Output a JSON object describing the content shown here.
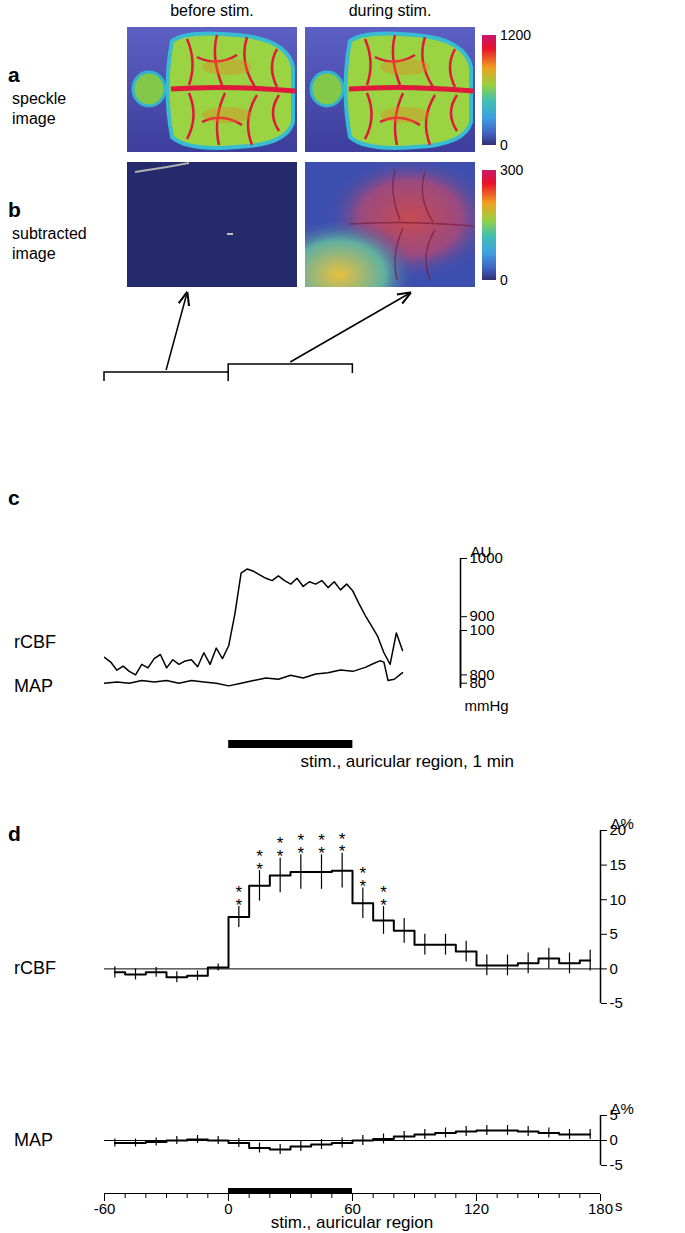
{
  "image_panels": [
    {
      "panel": "a",
      "label": "speckle image",
      "columns": [
        "before stim.",
        "during stim."
      ],
      "colorbar": {
        "range": [
          0,
          1200
        ],
        "ticks": [
          0,
          1200
        ]
      }
    },
    {
      "panel": "b",
      "label": "subtracted image",
      "colorbar": {
        "range": [
          0,
          300
        ],
        "ticks": [
          0,
          300
        ]
      }
    }
  ],
  "chart_data": [
    {
      "panel": "c",
      "type": "line",
      "name": "rCBF",
      "color": "#000000",
      "x": [
        -60,
        -57,
        -54,
        -51,
        -48,
        -45,
        -42,
        -39,
        -36,
        -33,
        -30,
        -27,
        -24,
        -21,
        -18,
        -15,
        -12,
        -9,
        -6,
        -3,
        0,
        3,
        6,
        9,
        12,
        15,
        18,
        21,
        24,
        27,
        30,
        33,
        36,
        39,
        42,
        45,
        48,
        51,
        54,
        57,
        60,
        63,
        66,
        69,
        72,
        75,
        78,
        81,
        84
      ],
      "values": [
        830,
        822,
        808,
        815,
        806,
        800,
        818,
        812,
        828,
        835,
        812,
        826,
        818,
        824,
        826,
        814,
        838,
        818,
        846,
        828,
        850,
        905,
        975,
        982,
        978,
        972,
        966,
        962,
        970,
        962,
        956,
        966,
        952,
        960,
        956,
        962,
        950,
        960,
        946,
        956,
        944,
        922,
        902,
        884,
        866,
        838,
        818,
        872,
        842
      ],
      "xlim": [
        -60,
        112
      ],
      "ylim": [
        780,
        1000
      ],
      "yticks": [
        800,
        900,
        1000
      ],
      "y_label": "AU",
      "tick_labels": "y",
      "image_windows": [
        [
          -60,
          0
        ],
        [
          0,
          60
        ]
      ]
    },
    {
      "panel": "c",
      "type": "line",
      "name": "MAP",
      "color": "#000000",
      "x": [
        -60,
        -54,
        -48,
        -42,
        -36,
        -30,
        -24,
        -18,
        -12,
        -6,
        0,
        6,
        12,
        18,
        24,
        30,
        36,
        42,
        48,
        54,
        60,
        66,
        70,
        73,
        75,
        77,
        80,
        84
      ],
      "values": [
        80,
        80.5,
        80,
        81,
        80.5,
        81,
        80,
        81,
        80.5,
        80,
        79,
        80,
        81,
        82,
        81.5,
        83,
        82,
        83.5,
        84,
        85,
        84.5,
        86,
        87.5,
        88.5,
        88,
        81,
        81.5,
        84
      ],
      "xlim": [
        -60,
        112
      ],
      "ylim": [
        78,
        100
      ],
      "yticks": [
        80,
        100
      ],
      "y_label": "mmHg",
      "tick_labels": "y",
      "stimulus": {
        "start": 0,
        "end": 60,
        "label": "stim., auricular region, 1 min"
      }
    },
    {
      "panel": "d",
      "type": "line",
      "name": "rCBF",
      "color": "#000000",
      "line_style": "step",
      "x": [
        -55,
        -45,
        -35,
        -25,
        -15,
        -5,
        5,
        15,
        25,
        35,
        45,
        55,
        65,
        75,
        85,
        95,
        105,
        115,
        125,
        135,
        145,
        155,
        165,
        175
      ],
      "values": [
        -0.5,
        -0.8,
        -0.5,
        -1.2,
        -1.0,
        0.2,
        7.5,
        12,
        13.5,
        14,
        14,
        14.2,
        9.5,
        7,
        5.5,
        3.5,
        3.5,
        2.5,
        0.5,
        0.5,
        0.8,
        1.5,
        0.8,
        1.2
      ],
      "errors": [
        0.8,
        0.8,
        0.7,
        0.8,
        0.7,
        0.5,
        1.5,
        2.2,
        2.5,
        2.5,
        2.5,
        2.5,
        2.2,
        2,
        1.8,
        1.5,
        1.5,
        1.5,
        1.5,
        1.5,
        1.5,
        1.5,
        1.5,
        1.5
      ],
      "significance": [
        null,
        null,
        null,
        null,
        null,
        null,
        "**",
        "**",
        "**",
        "**",
        "**",
        "**",
        "**",
        "**",
        null,
        null,
        null,
        null,
        null,
        null,
        null,
        null,
        null,
        null
      ],
      "xlim": [
        -60,
        180
      ],
      "ylim": [
        -5,
        20
      ],
      "yticks": [
        -5,
        0,
        5,
        10,
        15,
        20
      ],
      "y_label": "Δ%",
      "reference_line": 0,
      "tick_labels": "y"
    },
    {
      "panel": "d",
      "type": "line",
      "name": "MAP",
      "color": "#000000",
      "line_style": "step",
      "x": [
        -55,
        -45,
        -35,
        -25,
        -15,
        -5,
        5,
        15,
        25,
        35,
        45,
        55,
        65,
        75,
        85,
        95,
        105,
        115,
        125,
        135,
        145,
        155,
        165,
        175
      ],
      "values": [
        -0.5,
        -0.5,
        -0.3,
        0,
        0.2,
        0,
        -0.5,
        -1.5,
        -1.8,
        -1.2,
        -0.8,
        -0.5,
        0,
        0.3,
        0.8,
        1.2,
        1.5,
        1.8,
        2,
        2,
        1.8,
        1.5,
        1.2,
        1.2
      ],
      "errors": [
        0.8,
        0.8,
        0.8,
        0.8,
        0.8,
        0.8,
        0.9,
        1,
        1,
        1,
        1,
        1,
        1,
        1,
        1,
        1,
        1,
        1,
        1,
        1,
        1,
        1,
        1,
        1
      ],
      "xlim": [
        -60,
        180
      ],
      "ylim": [
        -5,
        5
      ],
      "yticks": [
        -5,
        0,
        5
      ],
      "y_label": "Δ%",
      "reference_line": 0,
      "xticks": [
        -60,
        0,
        60,
        120,
        180
      ],
      "minor_xticks": [
        -50,
        -40,
        -30,
        -20,
        -10,
        10,
        20,
        30,
        40,
        50,
        70,
        80,
        90,
        100,
        110,
        130,
        140,
        150,
        160,
        170
      ],
      "x_label": "s",
      "stimulus": {
        "start": 0,
        "end": 60,
        "label": "stim., auricular region"
      }
    }
  ]
}
